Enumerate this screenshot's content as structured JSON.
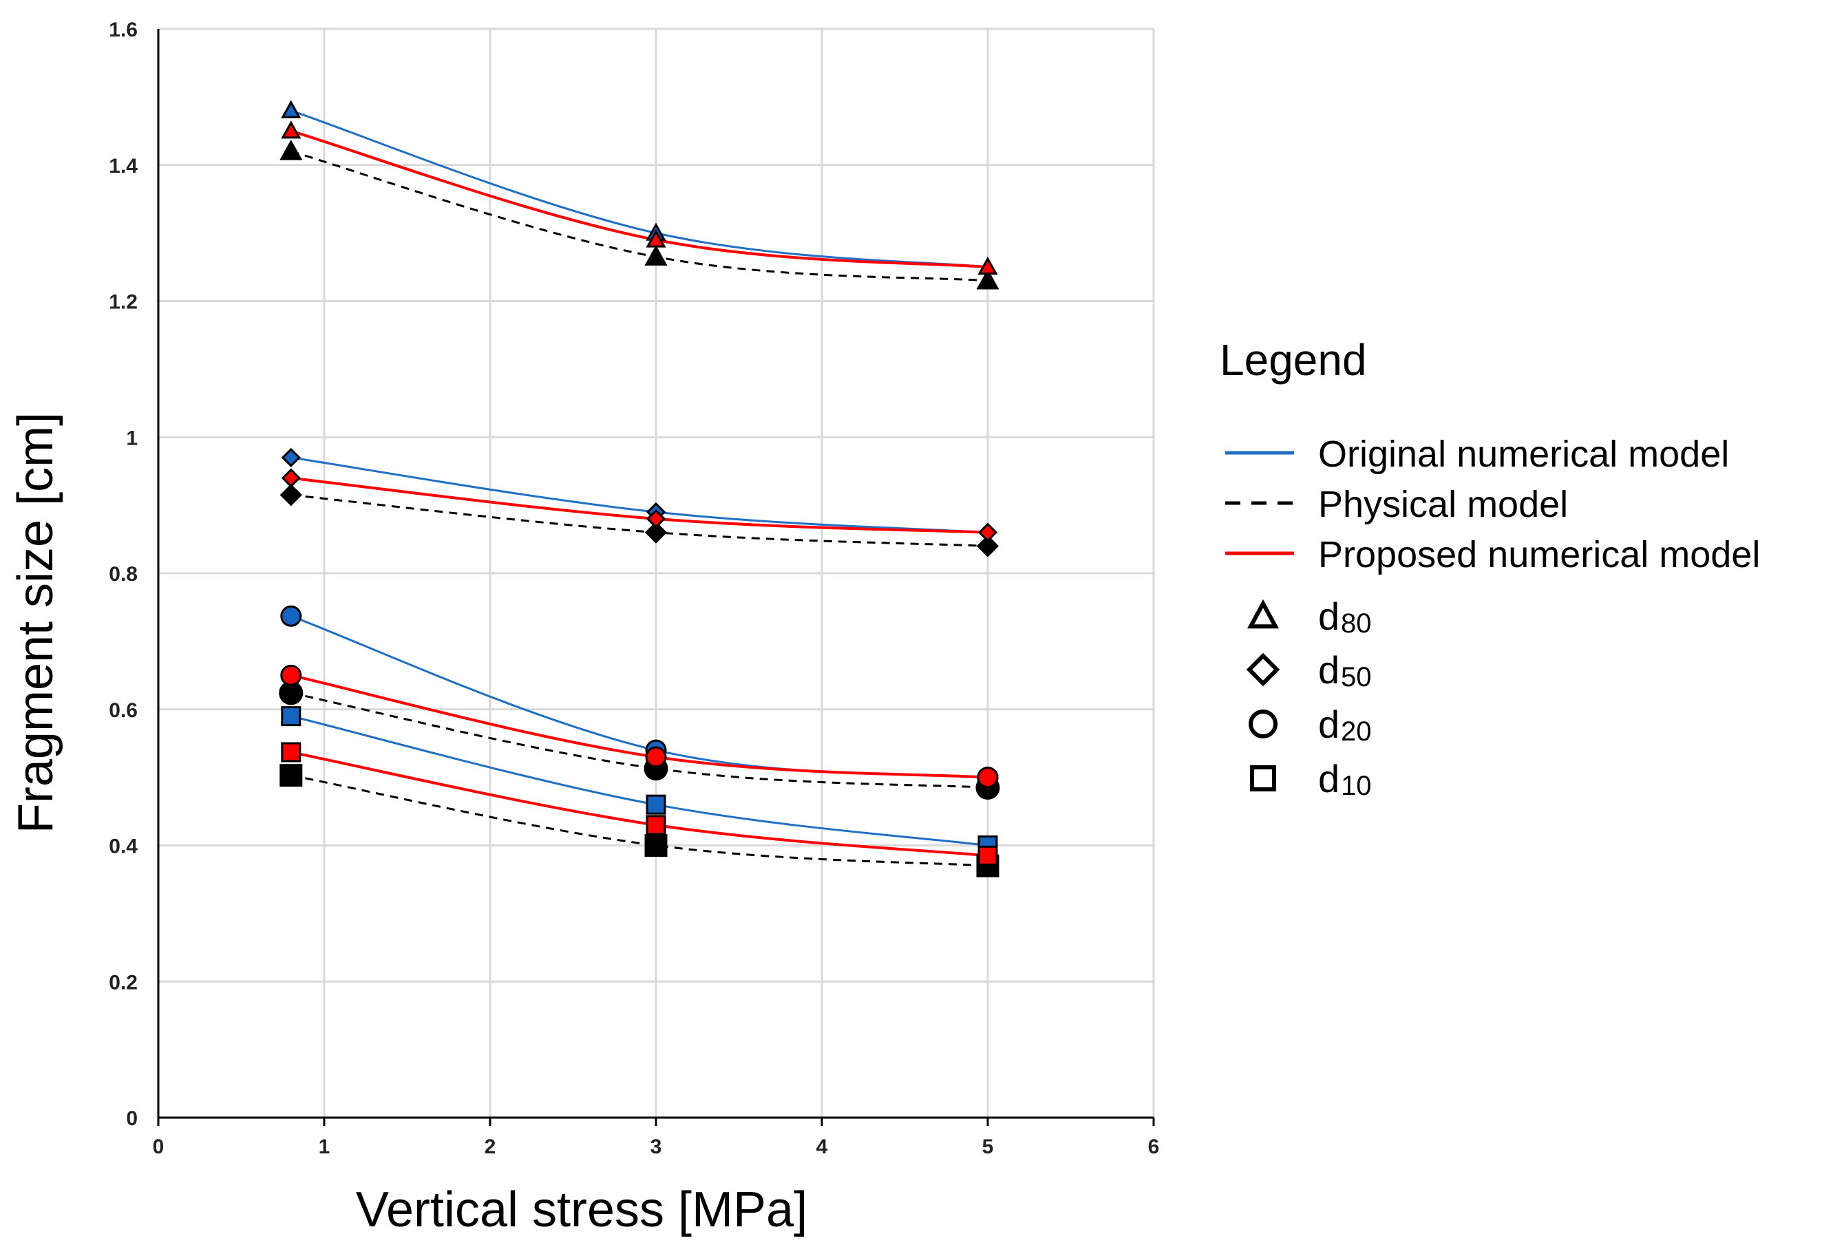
{
  "chart_data": {
    "type": "line",
    "title": "",
    "xlabel": "Vertical stress [MPa]",
    "ylabel": "Fragment size [cm]",
    "xlim": [
      0,
      6
    ],
    "ylim": [
      0,
      1.6
    ],
    "x_ticks": [
      "0",
      "1",
      "2",
      "3",
      "4",
      "5",
      "6"
    ],
    "y_ticks": [
      "0",
      "0.2",
      "0.4",
      "0.6",
      "0.8",
      "1",
      "1.2",
      "1.4",
      "1.6"
    ],
    "grid": true,
    "x": [
      0.8,
      3,
      5
    ],
    "series": [
      {
        "name": "Original numerical model",
        "quantile": "d80",
        "values": [
          1.48,
          1.3,
          1.25
        ]
      },
      {
        "name": "Physical model",
        "quantile": "d80",
        "values": [
          1.42,
          1.265,
          1.23
        ]
      },
      {
        "name": "Proposed numerical model",
        "quantile": "d80",
        "values": [
          1.45,
          1.29,
          1.25
        ]
      },
      {
        "name": "Original numerical model",
        "quantile": "d50",
        "values": [
          0.97,
          0.89,
          0.86
        ]
      },
      {
        "name": "Physical model",
        "quantile": "d50",
        "values": [
          0.915,
          0.86,
          0.84
        ]
      },
      {
        "name": "Proposed numerical model",
        "quantile": "d50",
        "values": [
          0.94,
          0.88,
          0.86
        ]
      },
      {
        "name": "Original numerical model",
        "quantile": "d20",
        "values": [
          0.737,
          0.54,
          0.5
        ]
      },
      {
        "name": "Physical model",
        "quantile": "d20",
        "values": [
          0.624,
          0.513,
          0.485
        ]
      },
      {
        "name": "Proposed numerical model",
        "quantile": "d20",
        "values": [
          0.65,
          0.53,
          0.5
        ]
      },
      {
        "name": "Original numerical model",
        "quantile": "d10",
        "values": [
          0.59,
          0.46,
          0.4
        ]
      },
      {
        "name": "Physical model",
        "quantile": "d10",
        "values": [
          0.503,
          0.4,
          0.37
        ]
      },
      {
        "name": "Proposed numerical model",
        "quantile": "d10",
        "values": [
          0.537,
          0.43,
          0.385
        ]
      }
    ],
    "legend": {
      "title": "Legend",
      "placement": "right",
      "lines": [
        {
          "label": "Original numerical model",
          "model": "original"
        },
        {
          "label": "Physical model",
          "model": "physical"
        },
        {
          "label": "Proposed numerical model",
          "model": "proposed"
        }
      ],
      "markers": [
        {
          "prefix": "d",
          "sub": "80",
          "shape": "triangle"
        },
        {
          "prefix": "d",
          "sub": "50",
          "shape": "diamond"
        },
        {
          "prefix": "d",
          "sub": "20",
          "shape": "circle"
        },
        {
          "prefix": "d",
          "sub": "10",
          "shape": "square"
        }
      ]
    },
    "colors": {
      "original": "#1f6fc4",
      "physical": "#000000",
      "proposed": "#ff0000",
      "original_marker_fill": "#1565c0",
      "grid": "#d9d9d9",
      "axis": "#000000"
    }
  }
}
